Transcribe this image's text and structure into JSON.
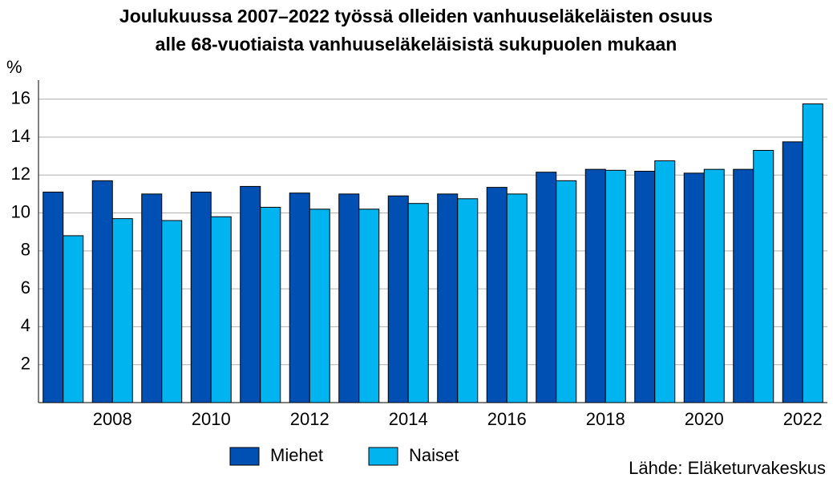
{
  "chart_data": {
    "type": "bar",
    "title": [
      "Joulukuussa 2007–2022 työssä olleiden vanhuuseläkeläisten osuus",
      "alle 68-vuotiaista vanhuuseläkeläisistä sukupuolen mukaan"
    ],
    "y_label": "%",
    "source": "Lähde: Eläketurvakeskus",
    "categories": [
      null,
      "2008",
      null,
      "2010",
      null,
      "2012",
      null,
      "2014",
      null,
      "2016",
      null,
      "2018",
      null,
      "2020",
      null,
      "2022"
    ],
    "series": [
      {
        "name": "Miehet",
        "color": "#0050b4",
        "values": [
          11.1,
          11.7,
          11.0,
          11.1,
          11.4,
          11.05,
          11.0,
          10.9,
          11.0,
          11.35,
          12.15,
          12.3,
          12.2,
          12.1,
          12.3,
          13.75
        ]
      },
      {
        "name": "Naiset",
        "color": "#00b4f0",
        "values": [
          8.8,
          9.7,
          9.6,
          9.8,
          10.3,
          10.2,
          10.2,
          10.5,
          10.75,
          11.0,
          11.7,
          12.25,
          12.75,
          12.3,
          13.3,
          15.75
        ]
      }
    ],
    "ylim": [
      0,
      17
    ],
    "yticks": [
      2,
      4,
      6,
      8,
      10,
      12,
      14,
      16
    ],
    "grid": true,
    "legend": "bottom"
  }
}
